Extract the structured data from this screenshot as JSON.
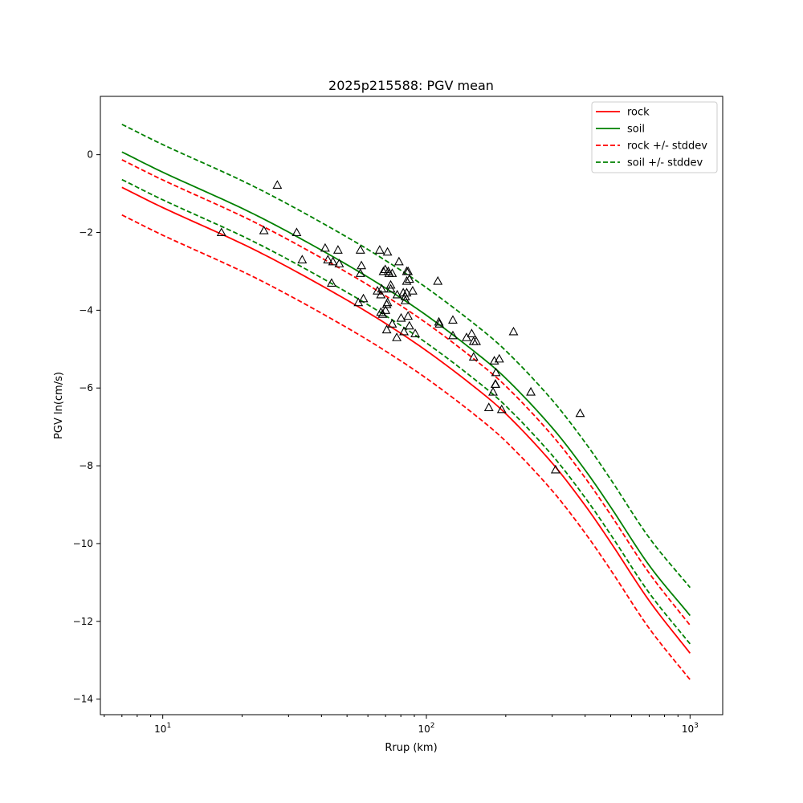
{
  "chart_data": {
    "type": "line",
    "title": "2025p215588: PGV mean",
    "xlabel": "Rrup (km)",
    "ylabel": "PGV ln(cm/s)",
    "xscale": "log",
    "xlim": [
      5.8,
      1330
    ],
    "ylim": [
      -14.4,
      1.5
    ],
    "x_ticks": [
      {
        "value": 10,
        "base": "10",
        "exp": "1"
      },
      {
        "value": 100,
        "base": "10",
        "exp": "2"
      },
      {
        "value": 1000,
        "base": "10",
        "exp": "3"
      }
    ],
    "y_ticks": [
      {
        "value": 0,
        "label": "0"
      },
      {
        "value": -2,
        "label": "−2"
      },
      {
        "value": -4,
        "label": "−4"
      },
      {
        "value": -6,
        "label": "−6"
      },
      {
        "value": -8,
        "label": "−8"
      },
      {
        "value": -10,
        "label": "−10"
      },
      {
        "value": -12,
        "label": "−12"
      },
      {
        "value": -14,
        "label": "−14"
      }
    ],
    "grid": false,
    "legend_position": "top-right",
    "x": [
      7,
      10,
      20,
      30,
      50,
      70,
      100,
      150,
      200,
      300,
      400,
      500,
      700,
      1000
    ],
    "series": [
      {
        "name": "rock",
        "color": "#ff0000",
        "dashed": false,
        "values": [
          -0.84,
          -1.36,
          -2.29,
          -2.9,
          -3.74,
          -4.34,
          -5.04,
          -5.94,
          -6.66,
          -7.93,
          -9.02,
          -9.97,
          -11.47,
          -12.82
        ]
      },
      {
        "name": "soil",
        "color": "#008000",
        "dashed": false,
        "values": [
          0.07,
          -0.45,
          -1.38,
          -1.99,
          -2.83,
          -3.43,
          -4.13,
          -5.03,
          -5.75,
          -7.02,
          -8.11,
          -9.06,
          -10.56,
          -11.85
        ]
      },
      {
        "name": "rock +/- stddev",
        "color": "#ff0000",
        "dashed": true,
        "values": [
          -0.13,
          -0.65,
          -1.58,
          -2.19,
          -3.03,
          -3.63,
          -4.33,
          -5.23,
          -5.95,
          -7.22,
          -8.31,
          -9.26,
          -10.76,
          -12.1
        ]
      },
      {
        "name": "",
        "color": "#ff0000",
        "dashed": true,
        "legend": false,
        "values": [
          -1.55,
          -2.07,
          -3.0,
          -3.61,
          -4.45,
          -5.05,
          -5.75,
          -6.65,
          -7.37,
          -8.64,
          -9.73,
          -10.68,
          -12.18,
          -13.5
        ]
      },
      {
        "name": "soil +/- stddev",
        "color": "#008000",
        "dashed": true,
        "values": [
          0.78,
          0.26,
          -0.67,
          -1.28,
          -2.12,
          -2.72,
          -3.42,
          -4.32,
          -5.04,
          -6.31,
          -7.4,
          -8.35,
          -9.85,
          -11.13
        ]
      },
      {
        "name": "",
        "color": "#008000",
        "dashed": true,
        "legend": false,
        "values": [
          -0.64,
          -1.16,
          -2.09,
          -2.7,
          -3.54,
          -4.14,
          -4.84,
          -5.74,
          -6.46,
          -7.73,
          -8.82,
          -9.77,
          -11.27,
          -12.58
        ]
      }
    ],
    "observations": {
      "marker": "triangle",
      "points": [
        [
          16.7,
          -2.0
        ],
        [
          24.2,
          -1.95
        ],
        [
          27.2,
          -0.78
        ],
        [
          32.2,
          -2.0
        ],
        [
          33.8,
          -2.7
        ],
        [
          41.3,
          -2.4
        ],
        [
          42.3,
          -2.7
        ],
        [
          43.7,
          -3.3
        ],
        [
          44.2,
          -2.75
        ],
        [
          46.2,
          -2.45
        ],
        [
          46.7,
          -2.8
        ],
        [
          55.2,
          -3.8
        ],
        [
          56.2,
          -2.45
        ],
        [
          56.2,
          -3.05
        ],
        [
          56.7,
          -2.85
        ],
        [
          57.7,
          -3.7
        ],
        [
          65.2,
          -3.5
        ],
        [
          66.5,
          -2.45
        ],
        [
          67.2,
          -3.6
        ],
        [
          67.2,
          -4.05
        ],
        [
          67.7,
          -3.45
        ],
        [
          68.2,
          -4.1
        ],
        [
          68.7,
          -3.0
        ],
        [
          69.8,
          -2.95
        ],
        [
          70.0,
          -4.0
        ],
        [
          70.7,
          -3.85
        ],
        [
          70.7,
          -4.5
        ],
        [
          71.2,
          -2.5
        ],
        [
          71.2,
          -3.8
        ],
        [
          71.7,
          -3.0
        ],
        [
          72.2,
          -3.05
        ],
        [
          73.2,
          -3.35
        ],
        [
          73.2,
          -3.45
        ],
        [
          74.2,
          -4.35
        ],
        [
          74.2,
          -3.05
        ],
        [
          77.2,
          -4.7
        ],
        [
          77.5,
          -3.6
        ],
        [
          78.7,
          -2.75
        ],
        [
          80.2,
          -4.2
        ],
        [
          81.7,
          -3.55
        ],
        [
          82.2,
          -4.55
        ],
        [
          83.2,
          -3.65
        ],
        [
          83.2,
          -3.75
        ],
        [
          84.2,
          -3.25
        ],
        [
          84.2,
          -3.0
        ],
        [
          84.2,
          -3.55
        ],
        [
          85.2,
          -4.15
        ],
        [
          85.2,
          -3.0
        ],
        [
          86.2,
          -4.4
        ],
        [
          86.2,
          -3.2
        ],
        [
          88.7,
          -3.5
        ],
        [
          90.7,
          -4.6
        ],
        [
          110.5,
          -3.25
        ],
        [
          111.5,
          -4.3
        ],
        [
          112.0,
          -4.35
        ],
        [
          126.0,
          -4.65
        ],
        [
          126.0,
          -4.25
        ],
        [
          142.0,
          -4.7
        ],
        [
          148.5,
          -4.6
        ],
        [
          151.0,
          -4.8
        ],
        [
          151.0,
          -5.2
        ],
        [
          154.5,
          -4.8
        ],
        [
          172.5,
          -6.5
        ],
        [
          179.0,
          -6.1
        ],
        [
          181.0,
          -5.3
        ],
        [
          182.5,
          -5.9
        ],
        [
          183.0,
          -5.9
        ],
        [
          183.5,
          -5.6
        ],
        [
          189.0,
          -5.25
        ],
        [
          193.0,
          -6.55
        ],
        [
          214.0,
          -4.55
        ],
        [
          249.0,
          -6.1
        ],
        [
          309.0,
          -8.1
        ],
        [
          383.0,
          -6.65
        ]
      ]
    }
  }
}
